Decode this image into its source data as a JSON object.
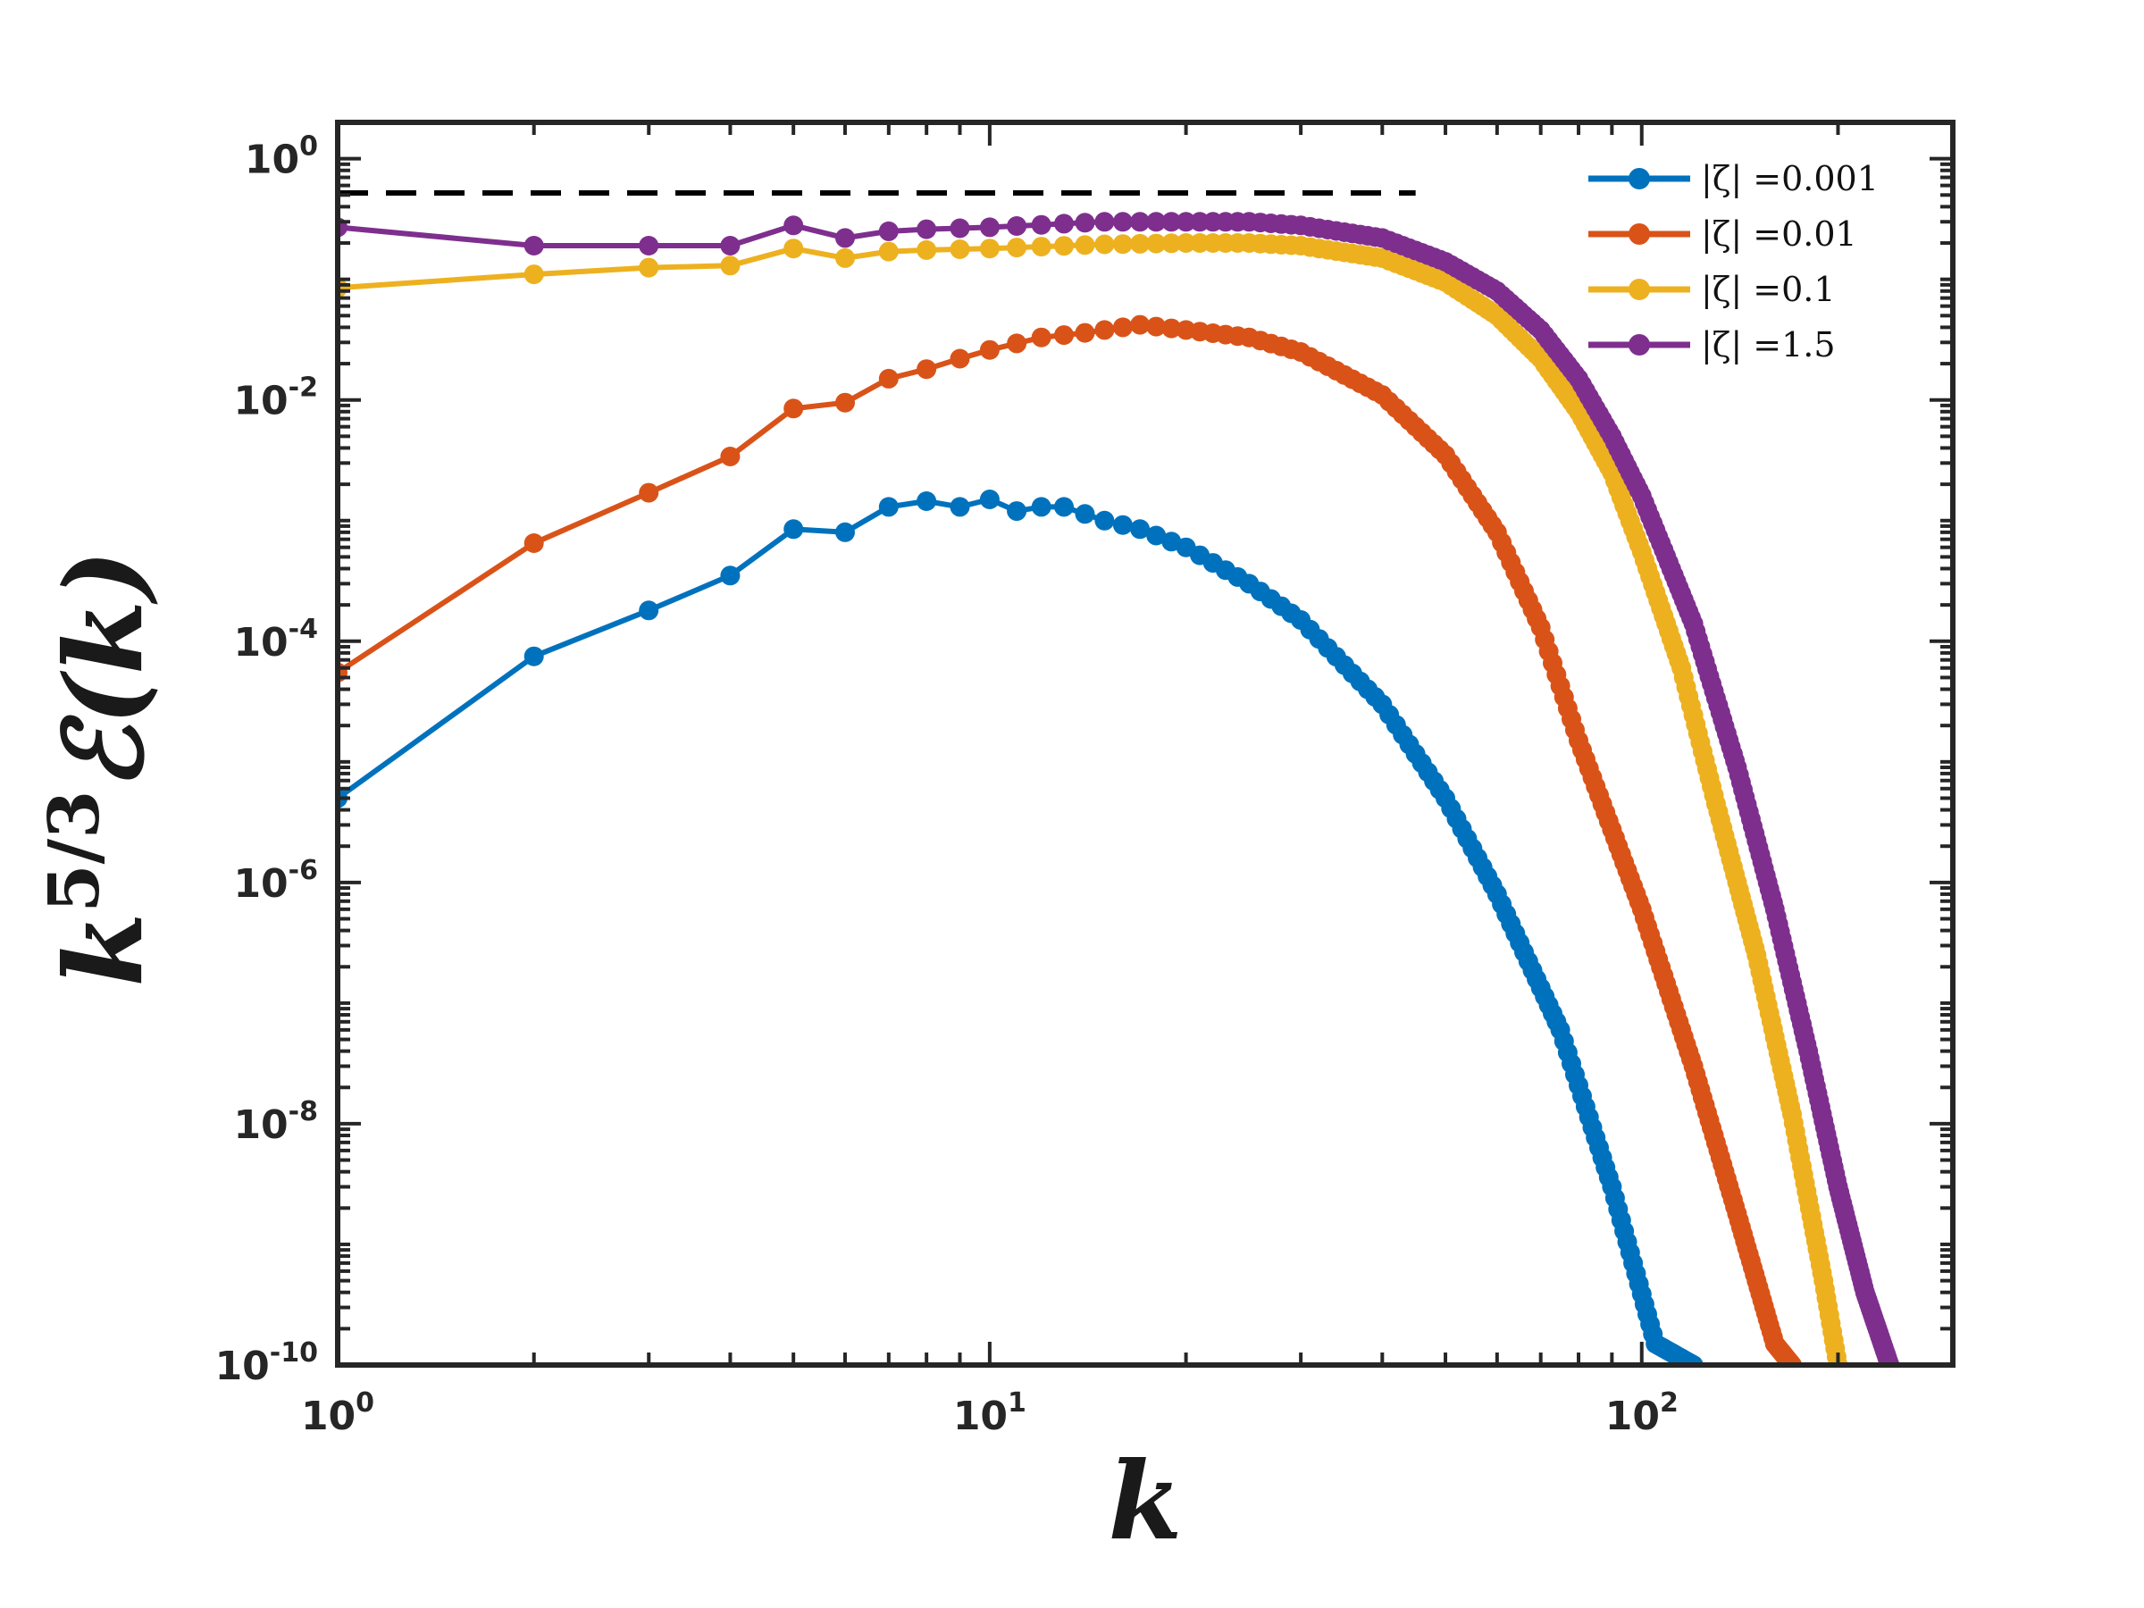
{
  "chart_data": {
    "type": "line",
    "x_scale": "log",
    "y_scale": "log",
    "xlim": [
      1,
      300
    ],
    "ylim": [
      1e-10,
      2
    ],
    "xlabel": "k",
    "ylabel": "k^{5/3} 𝓔(k)",
    "ylabel_parts": {
      "base": "k",
      "exponent": "5/3",
      "func": "ℰ(k)"
    },
    "x_ticks": [
      {
        "value": 1,
        "base": "10",
        "exp": "0"
      },
      {
        "value": 10,
        "base": "10",
        "exp": "1"
      },
      {
        "value": 100,
        "base": "10",
        "exp": "2"
      }
    ],
    "y_ticks": [
      {
        "value": 1,
        "base": "10",
        "exp": "0"
      },
      {
        "value": 0.01,
        "base": "10",
        "exp": "-2"
      },
      {
        "value": 0.0001,
        "base": "10",
        "exp": "-4"
      },
      {
        "value": 1e-06,
        "base": "10",
        "exp": "-6"
      },
      {
        "value": 1e-08,
        "base": "10",
        "exp": "-8"
      },
      {
        "value": 1e-10,
        "base": "10",
        "exp": "-10"
      }
    ],
    "reference_line": {
      "style": "dashed",
      "color": "#000000",
      "y": 0.52,
      "x_range": [
        1,
        45
      ]
    },
    "legend_position": "top-right",
    "series": [
      {
        "name": "|ζ| =0.001",
        "color": "#0072BD",
        "knots": [
          [
            1,
            5e-06
          ],
          [
            2,
            7.5e-05
          ],
          [
            3,
            0.00018
          ],
          [
            4,
            0.00035
          ],
          [
            5,
            0.00085
          ],
          [
            6,
            0.0008
          ],
          [
            7,
            0.0013
          ],
          [
            8,
            0.00145
          ],
          [
            9,
            0.0013
          ],
          [
            10,
            0.0015
          ],
          [
            11,
            0.0012
          ],
          [
            12,
            0.0013
          ],
          [
            13,
            0.0013
          ],
          [
            15,
            0.001
          ],
          [
            17,
            0.00085
          ],
          [
            20,
            0.0006
          ],
          [
            25,
            0.0003
          ],
          [
            30,
            0.00015
          ],
          [
            40,
            3e-05
          ],
          [
            50,
            5e-06
          ],
          [
            60,
            8e-07
          ],
          [
            75,
            6e-08
          ],
          [
            90,
            3e-09
          ],
          [
            105,
            1.5e-10
          ],
          [
            120,
            1e-10
          ]
        ]
      },
      {
        "name": "|ζ| =0.01",
        "color": "#D95319",
        "knots": [
          [
            1,
            5.5e-05
          ],
          [
            2,
            0.00065
          ],
          [
            3,
            0.0017
          ],
          [
            4,
            0.0034
          ],
          [
            5,
            0.0085
          ],
          [
            6,
            0.0095
          ],
          [
            7,
            0.015
          ],
          [
            8,
            0.018
          ],
          [
            9,
            0.022
          ],
          [
            10,
            0.026
          ],
          [
            12,
            0.033
          ],
          [
            14,
            0.036
          ],
          [
            17,
            0.042
          ],
          [
            20,
            0.038
          ],
          [
            25,
            0.033
          ],
          [
            30,
            0.025
          ],
          [
            40,
            0.011
          ],
          [
            50,
            0.0035
          ],
          [
            60,
            0.0008
          ],
          [
            70,
            0.00013
          ],
          [
            80,
            1.5e-05
          ],
          [
            100,
            6e-07
          ],
          [
            120,
            3e-08
          ],
          [
            140,
            1.8e-09
          ],
          [
            160,
            1.5e-10
          ],
          [
            170,
            1e-10
          ]
        ]
      },
      {
        "name": "|ζ| =0.1",
        "color": "#EDB120",
        "knots": [
          [
            1,
            0.085
          ],
          [
            2,
            0.11
          ],
          [
            3,
            0.125
          ],
          [
            4,
            0.13
          ],
          [
            5,
            0.18
          ],
          [
            6,
            0.15
          ],
          [
            7,
            0.17
          ],
          [
            8,
            0.175
          ],
          [
            10,
            0.18
          ],
          [
            15,
            0.195
          ],
          [
            20,
            0.2
          ],
          [
            25,
            0.2
          ],
          [
            30,
            0.19
          ],
          [
            40,
            0.15
          ],
          [
            50,
            0.095
          ],
          [
            60,
            0.05
          ],
          [
            70,
            0.022
          ],
          [
            80,
            0.008
          ],
          [
            90,
            0.0025
          ],
          [
            100,
            0.00055
          ],
          [
            115,
            6e-05
          ],
          [
            130,
            4.5e-06
          ],
          [
            150,
            2.5e-07
          ],
          [
            170,
            1.2e-08
          ],
          [
            190,
            5e-10
          ],
          [
            200,
            1e-10
          ]
        ]
      },
      {
        "name": "|ζ| =1.5",
        "color": "#7E2F8E",
        "knots": [
          [
            1,
            0.27
          ],
          [
            2,
            0.19
          ],
          [
            3,
            0.19
          ],
          [
            4,
            0.19
          ],
          [
            5,
            0.28
          ],
          [
            6,
            0.22
          ],
          [
            7,
            0.25
          ],
          [
            8,
            0.26
          ],
          [
            10,
            0.27
          ],
          [
            15,
            0.3
          ],
          [
            20,
            0.3
          ],
          [
            25,
            0.3
          ],
          [
            30,
            0.28
          ],
          [
            40,
            0.22
          ],
          [
            50,
            0.14
          ],
          [
            60,
            0.08
          ],
          [
            70,
            0.038
          ],
          [
            80,
            0.015
          ],
          [
            90,
            0.005
          ],
          [
            100,
            0.0016
          ],
          [
            120,
            0.00014
          ],
          [
            140,
            9e-06
          ],
          [
            160,
            6e-07
          ],
          [
            180,
            4e-08
          ],
          [
            200,
            3e-09
          ],
          [
            220,
            4e-10
          ],
          [
            240,
            1e-10
          ]
        ]
      }
    ]
  }
}
